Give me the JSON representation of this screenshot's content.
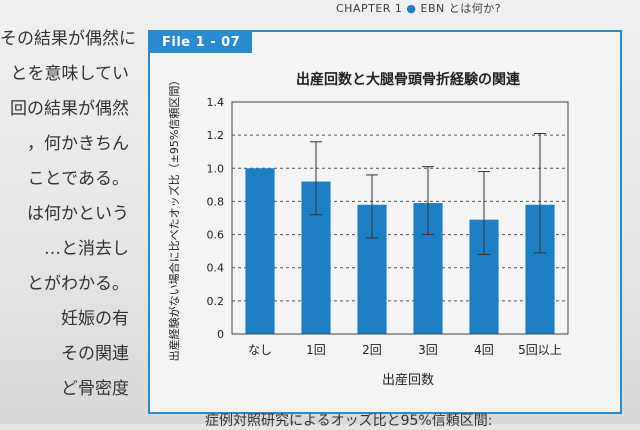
{
  "header": {
    "chapter": "CHAPTER 1",
    "dot": "●",
    "topic": "EBN とは何か?"
  },
  "left_text": [
    "その結果が偶然に",
    "とを意味してい",
    "回の結果が偶然",
    "，何かきちん",
    "ことである。",
    "は何かという",
    "…と消去し",
    "とがわかる。",
    "妊娠の有",
    "その関連",
    "ど骨密度"
  ],
  "figure": {
    "label": "File 1 - 07"
  },
  "caption_bottom": "症例対照研究によるオッズ比と95%信頼区間:",
  "chart_data": {
    "type": "bar",
    "title": "出産回数と大腿骨頭骨折経験の関連",
    "xlabel": "出産回数",
    "ylabel": "出産経験がない場合に比べたオッズ比（±95%信頼区間）",
    "categories": [
      "なし",
      "1回",
      "2回",
      "3回",
      "4回",
      "5回以上"
    ],
    "values": [
      1.0,
      0.92,
      0.78,
      0.79,
      0.69,
      0.78
    ],
    "ci_low": [
      1.0,
      0.72,
      0.58,
      0.6,
      0.48,
      0.49
    ],
    "ci_high": [
      1.0,
      1.16,
      0.96,
      1.01,
      0.98,
      1.21
    ],
    "yticks": [
      "0",
      "0.2",
      "0.4",
      "0.6",
      "0.8",
      "1.0",
      "1.2",
      "1.4"
    ],
    "ylim": [
      0,
      1.4
    ],
    "grid": true,
    "bar_color": "#1f7fc4"
  }
}
